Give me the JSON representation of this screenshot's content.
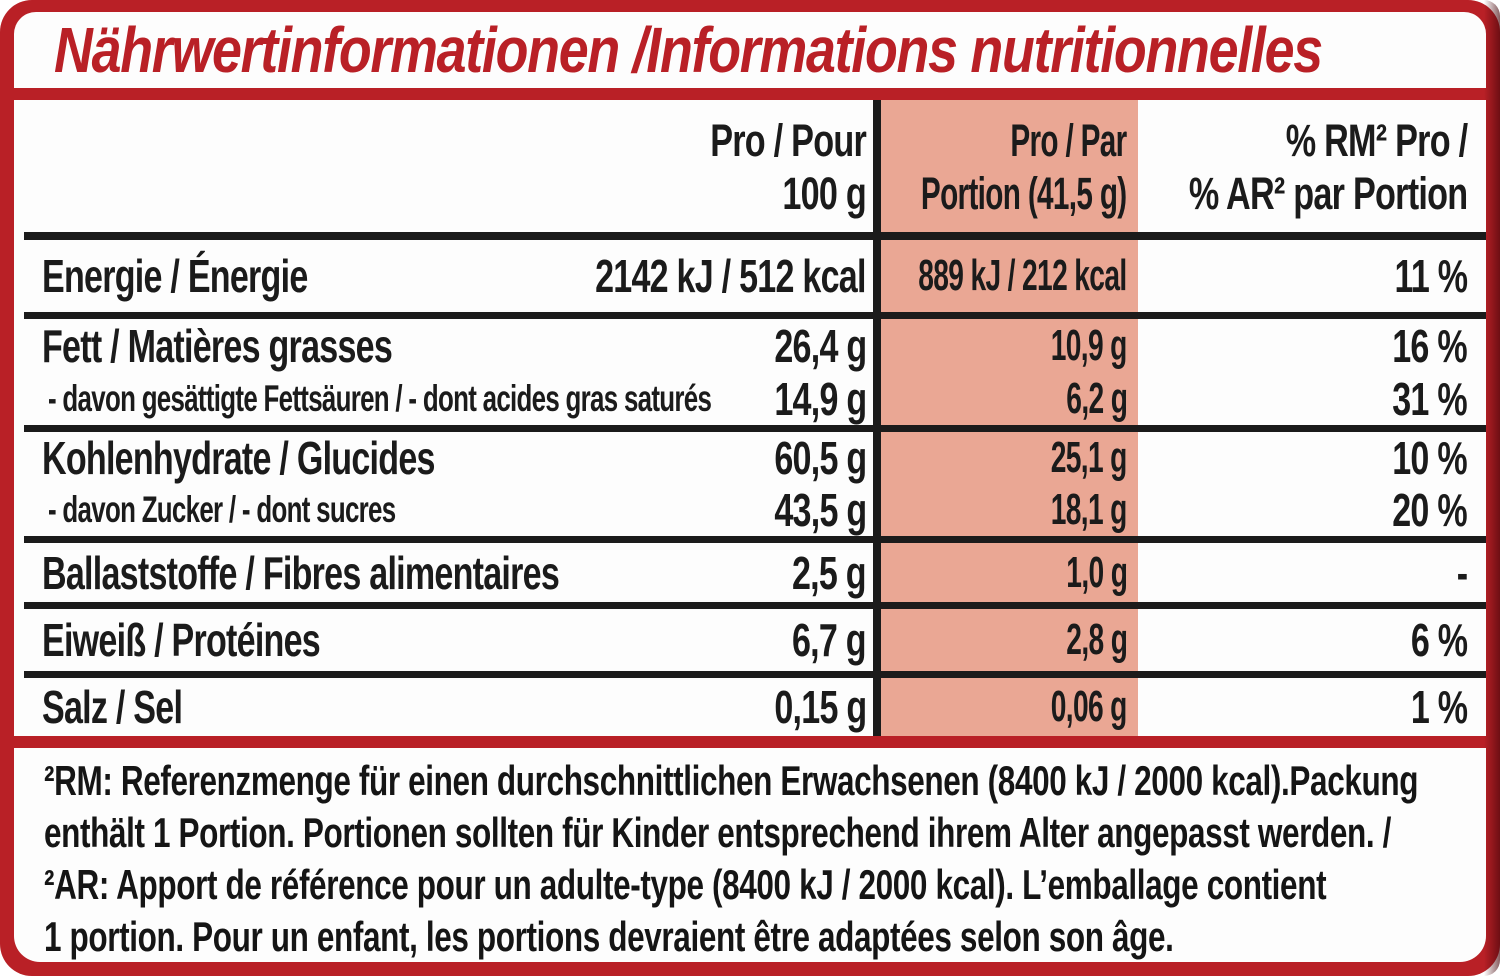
{
  "title": "Nährwertinformationen /Informations nutritionnelles",
  "colors": {
    "frame_red": "#b92026",
    "highlight_salmon": "#eaa794",
    "text_black": "#1b1b1b",
    "title_red": "#b92026"
  },
  "table": {
    "col_headers": {
      "per100_line1": "Pro / Pour",
      "per100_line2": "100 g",
      "portion_line1": "Pro / Par",
      "portion_line2": "Portion (41,5 g)",
      "rm_line1": "% RM² Pro /",
      "rm_line2": "% AR² par Portion"
    },
    "rows": [
      {
        "label": "Energie / Énergie",
        "per100": "2142 kJ / 512 kcal",
        "portion": "889 kJ / 212 kcal",
        "rm": "11 %"
      },
      {
        "label": "Fett / Matières grasses",
        "per100": "26,4 g",
        "portion": "10,9 g",
        "rm": "16 %"
      },
      {
        "label": "- davon gesättigte Fettsäuren / - dont acides gras saturés",
        "per100": "14,9 g",
        "portion": "6,2 g",
        "rm": "31 %"
      },
      {
        "label": "Kohlenhydrate / Glucides",
        "per100": "60,5 g",
        "portion": "25,1 g",
        "rm": "10 %"
      },
      {
        "label": "- davon Zucker / - dont sucres",
        "per100": "43,5 g",
        "portion": "18,1 g",
        "rm": "20 %"
      },
      {
        "label": "Ballaststoffe / Fibres alimentaires",
        "per100": "2,5 g",
        "portion": "1,0 g",
        "rm": "-"
      },
      {
        "label": "Eiweiß / Protéines",
        "per100": "6,7 g",
        "portion": "2,8 g",
        "rm": "6 %"
      },
      {
        "label": "Salz / Sel",
        "per100": "0,15 g",
        "portion": "0,06 g",
        "rm": "1 %"
      }
    ]
  },
  "footnote": {
    "line1": "²RM: Referenzmenge für einen durchschnittlichen Erwachsenen (8400 kJ / 2000 kcal).Packung",
    "line2": "enthält 1 Portion. Portionen sollten für Kinder entsprechend ihrem Alter angepasst werden. /",
    "line3": "²AR: Apport de référence pour un adulte-type (8400 kJ / 2000 kcal). L’emballage contient",
    "line4": "1 portion. Pour un enfant, les portions devraient être adaptées selon son âge."
  }
}
